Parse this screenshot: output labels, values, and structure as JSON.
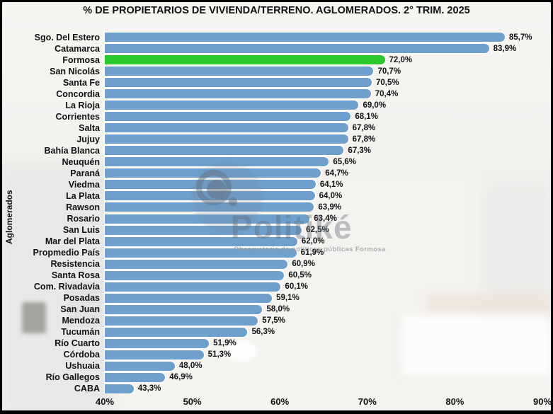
{
  "title": "% DE PROPIETARIOS DE VIVIENDA/TERRENO. AGLOMERADOS. 2° TRIM. 2025",
  "watermark": {
    "brand": "Politiké",
    "subtitle": "Observatorio de políticas públicas Formosa"
  },
  "chart_data": {
    "type": "bar",
    "orientation": "horizontal",
    "title": "% DE PROPIETARIOS DE VIVIENDA/TERRENO. AGLOMERADOS. 2° TRIM. 2025",
    "xlabel": "",
    "ylabel": "Aglomerados",
    "xlim": [
      40,
      90
    ],
    "x_tick_values": [
      40,
      50,
      60,
      70,
      80,
      90
    ],
    "x_tick_labels": [
      "40%",
      "50%",
      "60%",
      "70%",
      "80%",
      "90%"
    ],
    "grid": false,
    "legend": false,
    "bar_color": "#6FA0CD",
    "highlight_color": "#2BC92B",
    "highlight_index": 2,
    "categories": [
      "Sgo. Del Estero",
      "Catamarca",
      "Formosa",
      "San Nicolás",
      "Santa Fe",
      "Concordia",
      "La Rioja",
      "Corrientes",
      "Salta",
      "Jujuy",
      "Bahía Blanca",
      "Neuquén",
      "Paraná",
      "Viedma",
      "La Plata",
      "Rawson",
      "Rosario",
      "San Luis",
      "Mar del Plata",
      "Propmedio País",
      "Resistencia",
      "Santa Rosa",
      "Com. Rivadavia",
      "Posadas",
      "San Juan",
      "Mendoza",
      "Tucumán",
      "Río Cuarto",
      "Córdoba",
      "Ushuaia",
      "Río Gallegos",
      "CABA"
    ],
    "values": [
      85.7,
      83.9,
      72.0,
      70.7,
      70.5,
      70.4,
      69.0,
      68.1,
      67.8,
      67.8,
      67.3,
      65.6,
      64.7,
      64.1,
      64.0,
      63.9,
      63.4,
      62.5,
      62.0,
      61.9,
      60.9,
      60.5,
      60.1,
      59.1,
      58.0,
      57.5,
      56.3,
      51.9,
      51.3,
      48.0,
      46.9,
      43.3
    ],
    "value_labels": [
      "85,7%",
      "83,9%",
      "72,0%",
      "70,7%",
      "70,5%",
      "70,4%",
      "69,0%",
      "68,1%",
      "67,8%",
      "67,8%",
      "67,3%",
      "65,6%",
      "64,7%",
      "64,1%",
      "64,0%",
      "63,9%",
      "63,4%",
      "62,5%",
      "62,0%",
      "61,9%",
      "60,9%",
      "60,5%",
      "60,1%",
      "59,1%",
      "58,0%",
      "57,5%",
      "56,3%",
      "51,9%",
      "51,3%",
      "48,0%",
      "46,9%",
      "43,3%"
    ]
  }
}
